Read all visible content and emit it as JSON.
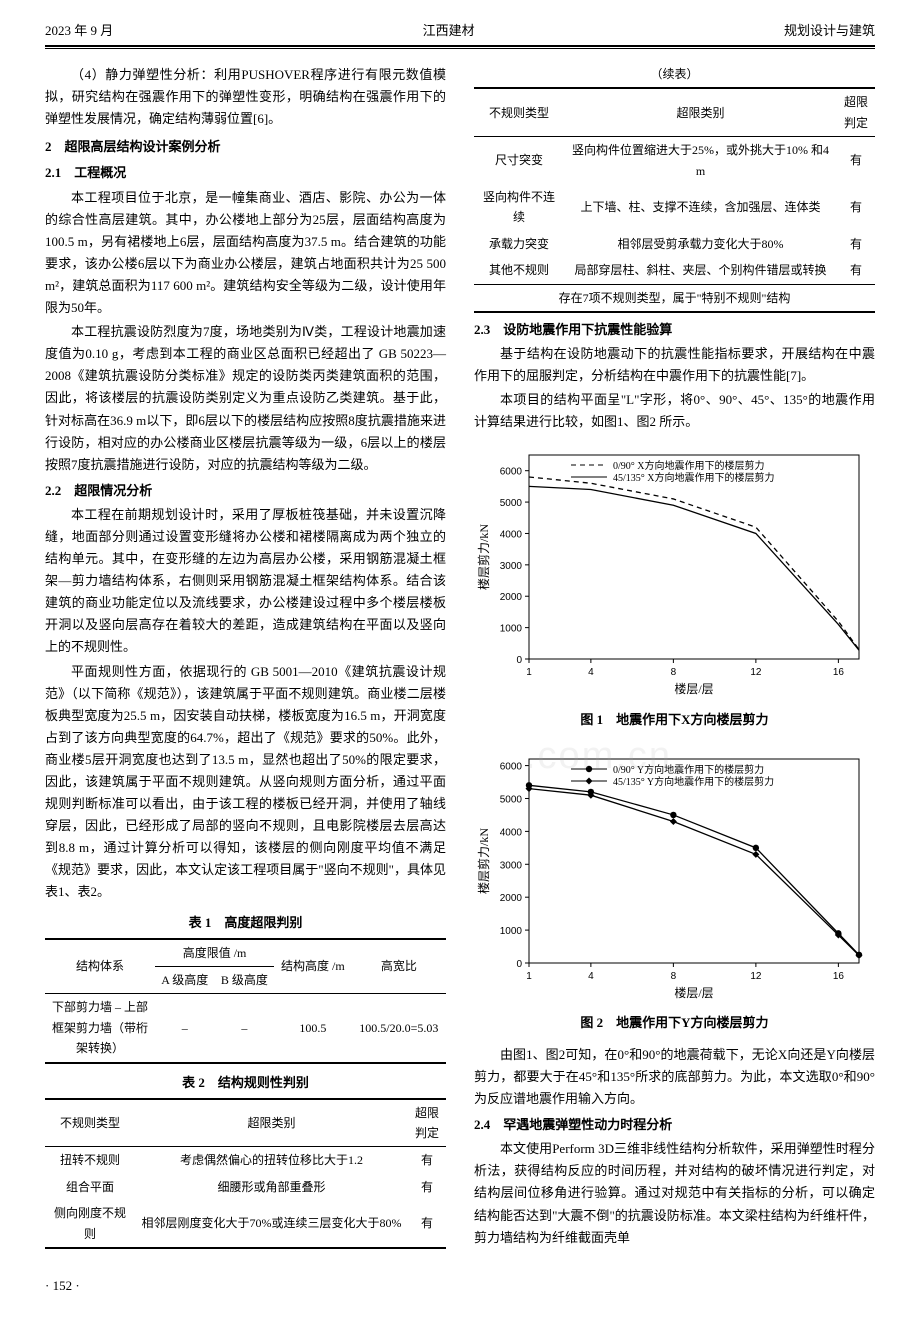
{
  "header": {
    "left": "2023 年 9 月",
    "center": "江西建材",
    "right": "规划设计与建筑"
  },
  "left_col": {
    "p1": "（4）静力弹塑性分析：利用PUSHOVER程序进行有限元数值模拟，研究结构在强震作用下的弹塑性变形，明确结构在强震作用下的弹塑性发展情况，确定结构薄弱位置[6]。",
    "sec2_head": "2　超限高层结构设计案例分析",
    "sec21_head": "2.1　工程概况",
    "p2": "本工程项目位于北京，是一幢集商业、酒店、影院、办公为一体的综合性高层建筑。其中，办公楼地上部分为25层，层面结构高度为100.5 m，另有裙楼地上6层，层面结构高度为37.5 m。结合建筑的功能要求，该办公楼6层以下为商业办公楼层，建筑占地面积共计为25 500 m²，建筑总面积为117 600 m²。建筑结构安全等级为二级，设计使用年限为50年。",
    "p3": "本工程抗震设防烈度为7度，场地类别为Ⅳ类，工程设计地震加速度值为0.10 g，考虑到本工程的商业区总面积已经超出了 GB 50223—2008《建筑抗震设防分类标准》规定的设防类丙类建筑面积的范围，因此，将该楼层的抗震设防类别定义为重点设防乙类建筑。基于此，针对标高在36.9 m以下，即6层以下的楼层结构应按照8度抗震措施来进行设防，相对应的办公楼商业区楼层抗震等级为一级，6层以上的楼层按照7度抗震措施进行设防，对应的抗震结构等级为二级。",
    "sec22_head": "2.2　超限情况分析",
    "p4": "本工程在前期规划设计时，采用了厚板桩筏基础，并未设置沉降缝，地面部分则通过设置变形缝将办公楼和裙楼隔离成为两个独立的结构单元。其中，在变形缝的左边为高层办公楼，采用钢筋混凝土框架—剪力墙结构体系，右侧则采用钢筋混凝土框架结构体系。结合该建筑的商业功能定位以及流线要求，办公楼建设过程中多个楼层楼板开洞以及竖向层高存在着较大的差距，造成建筑结构在平面以及竖向上的不规则性。",
    "p5": "平面规则性方面，依据现行的 GB 5001—2010《建筑抗震设计规范》（以下简称《规范》），该建筑属于平面不规则建筑。商业楼二层楼板典型宽度为25.5 m，因安装自动扶梯，楼板宽度为16.5 m，开洞宽度占到了该方向典型宽度的64.7%，超出了《规范》要求的50%。此外，商业楼5层开洞宽度也达到了13.5 m，显然也超出了50%的限定要求，因此，该建筑属于平面不规则建筑。从竖向规则方面分析，通过平面规则判断标准可以看出，由于该工程的楼板已经开洞，并使用了轴线穿层，因此，已经形成了局部的竖向不规则，且电影院楼层去层高达到8.8 m，通过计算分析可以得知，该楼层的侧向刚度平均值不满足《规范》要求，因此，本文认定该工程项目属于\"竖向不规则\"，具体见表1、表2。",
    "tbl1_title": "表 1　高度超限判别",
    "tbl1": {
      "h1": "结构体系",
      "h2": "高度限值 /m",
      "h2a": "A 级高度",
      "h2b": "B 级高度",
      "h3": "结构高度 /m",
      "h4": "高宽比",
      "r1c1": "下部剪力墙 – 上部框架剪力墙（带桁架转换）",
      "r1c2": "–",
      "r1c3": "–",
      "r1c4": "100.5",
      "r1c5": "100.5/20.0=5.03"
    },
    "tbl2_title": "表 2　结构规则性判别",
    "tbl2": {
      "h1": "不规则类型",
      "h2": "超限类别",
      "h3": "超限判定",
      "r1c1": "扭转不规则",
      "r1c2": "考虑偶然偏心的扭转位移比大于1.2",
      "r1c3": "有",
      "r2c1": "组合平面",
      "r2c2": "细腰形或角部重叠形",
      "r2c3": "有",
      "r3c1": "侧向刚度不规则",
      "r3c2": "相邻层刚度变化大于70%或连续三层变化大于80%",
      "r3c3": "有"
    }
  },
  "right_col": {
    "cont_label": "（续表）",
    "tbl2b": {
      "h1": "不规则类型",
      "h2": "超限类别",
      "h3": "超限判定",
      "r1c1": "尺寸突变",
      "r1c2": "竖向构件位置缩进大于25%，或外挑大于10% 和4 m",
      "r1c3": "有",
      "r2c1": "竖向构件不连续",
      "r2c2": "上下墙、柱、支撑不连续，含加强层、连体类",
      "r2c3": "有",
      "r3c1": "承载力突变",
      "r3c2": "相邻层受剪承载力变化大于80%",
      "r3c3": "有",
      "r4c1": "其他不规则",
      "r4c2": "局部穿层柱、斜柱、夹层、个别构件错层或转换",
      "r4c3": "有",
      "summary": "存在7项不规则类型，属于\"特别不规则\"结构"
    },
    "sec23_head": "2.3　设防地震作用下抗震性能验算",
    "p6": "基于结构在设防地震动下的抗震性能指标要求，开展结构在中震作用下的屈服判定，分析结构在中震作用下的抗震性能[7]。",
    "p7": "本项目的结构平面呈\"L\"字形，将0°、90°、45°、135°的地震作用计算结果进行比较，如图1、图2 所示。",
    "chart1": {
      "legend1": "0/90° X方向地震作用下的楼层剪力",
      "legend2": "45/135° X方向地震作用下的楼层剪力",
      "xlabel": "楼层/层",
      "ylabel": "楼层剪力/kN",
      "xticks": [
        1,
        4,
        8,
        12,
        16
      ],
      "yticks": [
        0,
        1000,
        2000,
        3000,
        4000,
        5000,
        6000
      ],
      "xlim": [
        1,
        17
      ],
      "ylim": [
        0,
        6500
      ],
      "series1": {
        "x": [
          1,
          4,
          8,
          12,
          16,
          17
        ],
        "y": [
          5800,
          5600,
          5100,
          4200,
          1200,
          300
        ],
        "style": "dashed",
        "color": "#000000"
      },
      "series2": {
        "x": [
          1,
          4,
          8,
          12,
          16,
          17
        ],
        "y": [
          5500,
          5400,
          4900,
          4000,
          1100,
          280
        ],
        "style": "solid",
        "color": "#000000"
      },
      "caption": "图 1　地震作用下X方向楼层剪力"
    },
    "chart2": {
      "legend1": "0/90° Y方向地震作用下的楼层剪力",
      "legend2": "45/135° Y方向地震作用下的楼层剪力",
      "xlabel": "楼层/层",
      "ylabel": "楼层剪力/kN",
      "xticks": [
        1,
        4,
        8,
        12,
        16
      ],
      "yticks": [
        0,
        1000,
        2000,
        3000,
        4000,
        5000,
        6000
      ],
      "xlim": [
        1,
        17
      ],
      "ylim": [
        0,
        6200
      ],
      "series1": {
        "x": [
          1,
          4,
          8,
          12,
          16,
          17
        ],
        "y": [
          5400,
          5200,
          4500,
          3500,
          900,
          250
        ],
        "style": "solid-dot",
        "color": "#000000"
      },
      "series2": {
        "x": [
          1,
          4,
          8,
          12,
          16,
          17
        ],
        "y": [
          5300,
          5100,
          4300,
          3300,
          850,
          230
        ],
        "style": "solid-diamond",
        "color": "#000000"
      },
      "caption": "图 2　地震作用下Y方向楼层剪力"
    },
    "p8": "由图1、图2可知，在0°和90°的地震荷载下，无论X向还是Y向楼层剪力，都要大于在45°和135°所求的底部剪力。为此，本文选取0°和90°为反应谱地震作用输入方向。",
    "sec24_head": "2.4　罕遇地震弹塑性动力时程分析",
    "p9": "本文使用Perform 3D三维非线性结构分析软件，采用弹塑性时程分析法，获得结构反应的时间历程，并对结构的破坏情况进行判定，对结构层间位移角进行验算。通过对规范中有关指标的分析，可以确定结构能否达到\"大震不倒\"的抗震设防标准。本文梁柱结构为纤维杆件，剪力墙结构为纤维截面壳单"
  },
  "watermark": ".com.cn",
  "footer": "· 152 ·"
}
